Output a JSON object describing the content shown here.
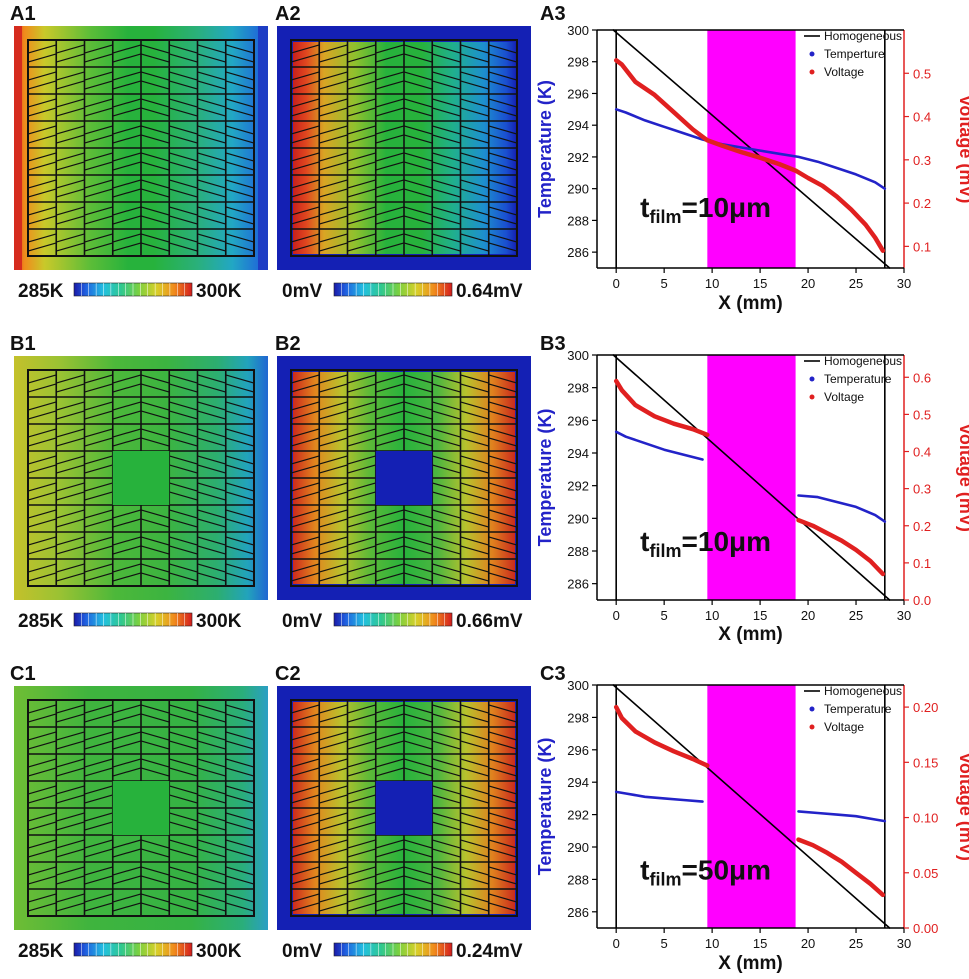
{
  "figure": {
    "rows": [
      {
        "id": "A",
        "labels": [
          "A1",
          "A2",
          "A3"
        ],
        "map1_scale": {
          "min": "285K",
          "max": "300K"
        },
        "map2_scale": {
          "min": "0mV",
          "max": "0.64mV"
        },
        "has_inclusion": false
      },
      {
        "id": "B",
        "labels": [
          "B1",
          "B2",
          "B3"
        ],
        "map1_scale": {
          "min": "285K",
          "max": "300K"
        },
        "map2_scale": {
          "min": "0mV",
          "max": "0.66mV"
        },
        "has_inclusion": true
      },
      {
        "id": "C",
        "labels": [
          "C1",
          "C2",
          "C3"
        ],
        "map1_scale": {
          "min": "285K",
          "max": "300K"
        },
        "map2_scale": {
          "min": "0mV",
          "max": "0.24mV"
        },
        "has_inclusion": true
      }
    ]
  },
  "colors": {
    "temperature": "#2323c8",
    "voltage": "#e02020",
    "homogeneous": "#000000",
    "highlight": "#ff00ff",
    "field_green": "#27b23c",
    "field_blue": "#1420b4"
  },
  "chart_data": [
    {
      "panel": "A3",
      "type": "line",
      "xlabel": "X (mm)",
      "ylabel": "Temperature (K)",
      "y2label": "Voltage (mV)",
      "xlim": [
        -2,
        30
      ],
      "ylim": [
        285,
        300
      ],
      "y2lim": [
        0.05,
        0.6
      ],
      "xticks": [
        0,
        5,
        10,
        15,
        20,
        25,
        30
      ],
      "yticks": [
        286,
        288,
        290,
        292,
        294,
        296,
        298,
        300
      ],
      "y2ticks": [
        0.1,
        0.2,
        0.3,
        0.4,
        0.5
      ],
      "highlight_region": [
        9.5,
        18.7
      ],
      "vlines": [
        0,
        28
      ],
      "annotation": {
        "main": "t",
        "sub": "film",
        "value": "=10μm",
        "x": 2.5,
        "y": 288.2
      },
      "legend": [
        "Homogeneous",
        "Temperture",
        "Voltage"
      ],
      "series": [
        {
          "name": "Homogeneous",
          "axis": "left",
          "x": [
            -0.3,
            28.5
          ],
          "y": [
            300,
            285
          ]
        },
        {
          "name": "Temperture",
          "axis": "left",
          "x": [
            0,
            1,
            3,
            5,
            7,
            9,
            11,
            13,
            15,
            17,
            19,
            21,
            23,
            25,
            27,
            28
          ],
          "y": [
            295,
            294.8,
            294.3,
            293.9,
            293.5,
            293.1,
            292.8,
            292.6,
            292.4,
            292.2,
            292.0,
            291.7,
            291.3,
            290.9,
            290.4,
            290.0
          ]
        },
        {
          "name": "Voltage",
          "axis": "right",
          "x": [
            0,
            0.6,
            2,
            4,
            6,
            8,
            9.5,
            11,
            13,
            15,
            17,
            18.7,
            20,
            21.5,
            23,
            24.5,
            26,
            27,
            27.8
          ],
          "y": [
            0.53,
            0.52,
            0.48,
            0.45,
            0.41,
            0.37,
            0.345,
            0.333,
            0.318,
            0.305,
            0.29,
            0.275,
            0.258,
            0.24,
            0.215,
            0.185,
            0.15,
            0.12,
            0.09
          ]
        }
      ]
    },
    {
      "panel": "B3",
      "type": "line",
      "xlabel": "X (mm)",
      "ylabel": "Temperature (K)",
      "y2label": "Voltage (mV)",
      "xlim": [
        -2,
        30
      ],
      "ylim": [
        285,
        300
      ],
      "y2lim": [
        0.0,
        0.66
      ],
      "xticks": [
        0,
        5,
        10,
        15,
        20,
        25,
        30
      ],
      "yticks": [
        286,
        288,
        290,
        292,
        294,
        296,
        298,
        300
      ],
      "y2ticks": [
        0.0,
        0.1,
        0.2,
        0.3,
        0.4,
        0.5,
        0.6
      ],
      "highlight_region": [
        9.5,
        18.7
      ],
      "vlines": [
        0,
        28
      ],
      "annotation": {
        "main": "t",
        "sub": "film",
        "value": "=10μm",
        "x": 2.5,
        "y": 288.0
      },
      "legend": [
        "Homogeneous",
        "Temperature",
        "Voltage"
      ],
      "series": [
        {
          "name": "Homogeneous",
          "axis": "left",
          "x": [
            -0.3,
            28.5
          ],
          "y": [
            300,
            285
          ]
        },
        {
          "name": "Temperature",
          "axis": "left",
          "x": [
            0,
            1,
            3,
            5,
            7,
            9
          ],
          "y": [
            295.3,
            295.0,
            294.6,
            294.2,
            293.9,
            293.6
          ]
        },
        {
          "name": "Temperature",
          "axis": "left",
          "x": [
            19,
            21,
            23,
            25,
            27,
            28
          ],
          "y": [
            291.4,
            291.3,
            291.0,
            290.7,
            290.2,
            289.8
          ]
        },
        {
          "name": "Voltage",
          "axis": "right",
          "x": [
            0,
            0.6,
            2,
            4,
            6,
            8,
            9.5
          ],
          "y": [
            0.59,
            0.565,
            0.525,
            0.495,
            0.475,
            0.46,
            0.445
          ]
        },
        {
          "name": "Voltage",
          "axis": "right",
          "x": [
            19,
            20.5,
            22,
            23.5,
            25,
            26.5,
            27.8
          ],
          "y": [
            0.215,
            0.2,
            0.18,
            0.16,
            0.135,
            0.105,
            0.07
          ]
        }
      ]
    },
    {
      "panel": "C3",
      "type": "line",
      "xlabel": "X (mm)",
      "ylabel": "Temperature (K)",
      "y2label": "Voltage (mV)",
      "xlim": [
        -2,
        30
      ],
      "ylim": [
        285,
        300
      ],
      "y2lim": [
        0.0,
        0.22
      ],
      "xticks": [
        0,
        5,
        10,
        15,
        20,
        25,
        30
      ],
      "yticks": [
        286,
        288,
        290,
        292,
        294,
        296,
        298,
        300
      ],
      "y2ticks": [
        0.0,
        0.05,
        0.1,
        0.15,
        0.2
      ],
      "highlight_region": [
        9.5,
        18.7
      ],
      "vlines": [
        0,
        28
      ],
      "annotation": {
        "main": "t",
        "sub": "film",
        "value": "=50μm",
        "x": 2.5,
        "y": 288.0
      },
      "legend": [
        "Homogeneous",
        "Temperature",
        "Voltage"
      ],
      "series": [
        {
          "name": "Homogeneous",
          "axis": "left",
          "x": [
            -0.3,
            28.5
          ],
          "y": [
            300,
            285
          ]
        },
        {
          "name": "Temperature",
          "axis": "left",
          "x": [
            0,
            1,
            3,
            5,
            7,
            9
          ],
          "y": [
            293.4,
            293.3,
            293.1,
            293.0,
            292.9,
            292.8
          ]
        },
        {
          "name": "Temperature",
          "axis": "left",
          "x": [
            19,
            21,
            23,
            25,
            27,
            28
          ],
          "y": [
            292.2,
            292.1,
            292.0,
            291.9,
            291.7,
            291.6
          ]
        },
        {
          "name": "Voltage",
          "axis": "right",
          "x": [
            0,
            0.6,
            2,
            4,
            6,
            8,
            9.5
          ],
          "y": [
            0.2,
            0.19,
            0.178,
            0.168,
            0.16,
            0.153,
            0.147
          ]
        },
        {
          "name": "Voltage",
          "axis": "right",
          "x": [
            19,
            20.5,
            22,
            23.5,
            25,
            26.5,
            27.8
          ],
          "y": [
            0.08,
            0.075,
            0.068,
            0.06,
            0.05,
            0.04,
            0.03
          ]
        }
      ]
    }
  ]
}
